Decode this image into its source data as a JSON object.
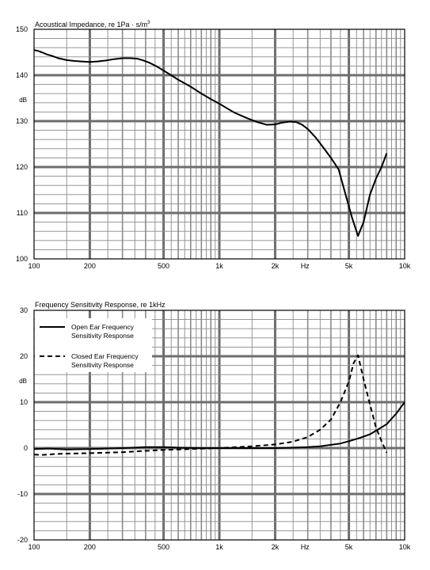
{
  "chart_data": [
    {
      "type": "line",
      "title": "Acoustical Impedance, re 1Pa · s/m",
      "title_superscript": "3",
      "xscale": "log",
      "xlim": [
        100,
        10000
      ],
      "ylim": [
        100,
        150
      ],
      "ylabel": "dB",
      "xlabel": "Hz",
      "grid": true,
      "x_ticks": [
        {
          "v": 100,
          "label": "100"
        },
        {
          "v": 200,
          "label": "200"
        },
        {
          "v": 500,
          "label": "500"
        },
        {
          "v": 1000,
          "label": "1k"
        },
        {
          "v": 2000,
          "label": "2k"
        },
        {
          "v": 5000,
          "label": "5k"
        },
        {
          "v": 10000,
          "label": "10k"
        }
      ],
      "y_ticks": [
        100,
        110,
        120,
        130,
        140,
        150
      ],
      "series": [
        {
          "style": "solid",
          "x": [
            100,
            105,
            110,
            118,
            125,
            135,
            150,
            165,
            180,
            200,
            220,
            245,
            270,
            300,
            330,
            360,
            390,
            420,
            460,
            500,
            550,
            600,
            700,
            800,
            900,
            1000,
            1100,
            1200,
            1400,
            1600,
            1800,
            2000,
            2200,
            2400,
            2600,
            2800,
            3000,
            3300,
            3600,
            4000,
            4400,
            4800,
            5200,
            5600,
            6000,
            6500,
            7000,
            7500,
            8000
          ],
          "y": [
            145.5,
            145.3,
            145,
            144.5,
            144.2,
            143.7,
            143.3,
            143.1,
            143,
            142.9,
            143,
            143.2,
            143.5,
            143.7,
            143.7,
            143.6,
            143.2,
            142.7,
            141.9,
            141,
            140,
            139,
            137.5,
            136,
            134.8,
            133.8,
            132.8,
            131.9,
            130.7,
            129.8,
            129.2,
            129.3,
            129.7,
            129.9,
            129.8,
            129.2,
            128.3,
            126.5,
            124.5,
            122,
            119.5,
            114,
            109,
            105,
            108,
            114,
            117.5,
            120,
            123
          ]
        }
      ]
    },
    {
      "type": "line",
      "title": "Frequency Sensitivity Response, re 1kHz",
      "xscale": "log",
      "xlim": [
        100,
        10000
      ],
      "ylim": [
        -20,
        30
      ],
      "ylabel": "dB",
      "xlabel": "Hz",
      "grid": true,
      "legend_position": "top-left",
      "x_ticks": [
        {
          "v": 100,
          "label": "100"
        },
        {
          "v": 200,
          "label": "200"
        },
        {
          "v": 500,
          "label": "500"
        },
        {
          "v": 1000,
          "label": "1k"
        },
        {
          "v": 2000,
          "label": "2k"
        },
        {
          "v": 5000,
          "label": "5k"
        },
        {
          "v": 10000,
          "label": "10k"
        }
      ],
      "y_ticks": [
        -20,
        -10,
        0,
        10,
        20,
        30
      ],
      "series": [
        {
          "name": "Open Ear Frequency Sensitivity Response",
          "legend_lines": [
            "Open Ear Frequency",
            "Sensitivity Response"
          ],
          "style": "solid",
          "x": [
            100,
            120,
            150,
            200,
            250,
            300,
            400,
            500,
            600,
            800,
            1000,
            1500,
            2000,
            2500,
            3000,
            3500,
            4000,
            4500,
            5000,
            5500,
            6000,
            6500,
            7000,
            8000,
            9000,
            10000
          ],
          "y": [
            -0.2,
            -0.1,
            -0.3,
            -0.2,
            -0.1,
            0,
            0.2,
            0.2,
            0.1,
            0,
            0,
            0,
            0,
            0.1,
            0.2,
            0.4,
            0.7,
            1,
            1.5,
            2,
            2.5,
            3,
            3.8,
            5.2,
            7.5,
            10
          ]
        },
        {
          "name": "Closed Ear Frequency Sensitivity Response",
          "legend_lines": [
            "Closed Ear Frequency",
            "Sensitivity Response"
          ],
          "style": "dashed",
          "x": [
            100,
            110,
            130,
            150,
            200,
            300,
            400,
            500,
            700,
            1000,
            1500,
            2000,
            2500,
            3000,
            3500,
            4000,
            4500,
            5000,
            5300,
            5600,
            6000,
            6500,
            7000,
            7500,
            8000
          ],
          "y": [
            -1.4,
            -1.5,
            -1.3,
            -1.2,
            -1.1,
            -0.9,
            -0.6,
            -0.4,
            -0.2,
            0,
            0.4,
            0.8,
            1.4,
            2.4,
            4,
            6.2,
            10,
            14.5,
            18.5,
            20.2,
            15,
            9.5,
            4.5,
            1.5,
            -1
          ]
        }
      ]
    }
  ]
}
